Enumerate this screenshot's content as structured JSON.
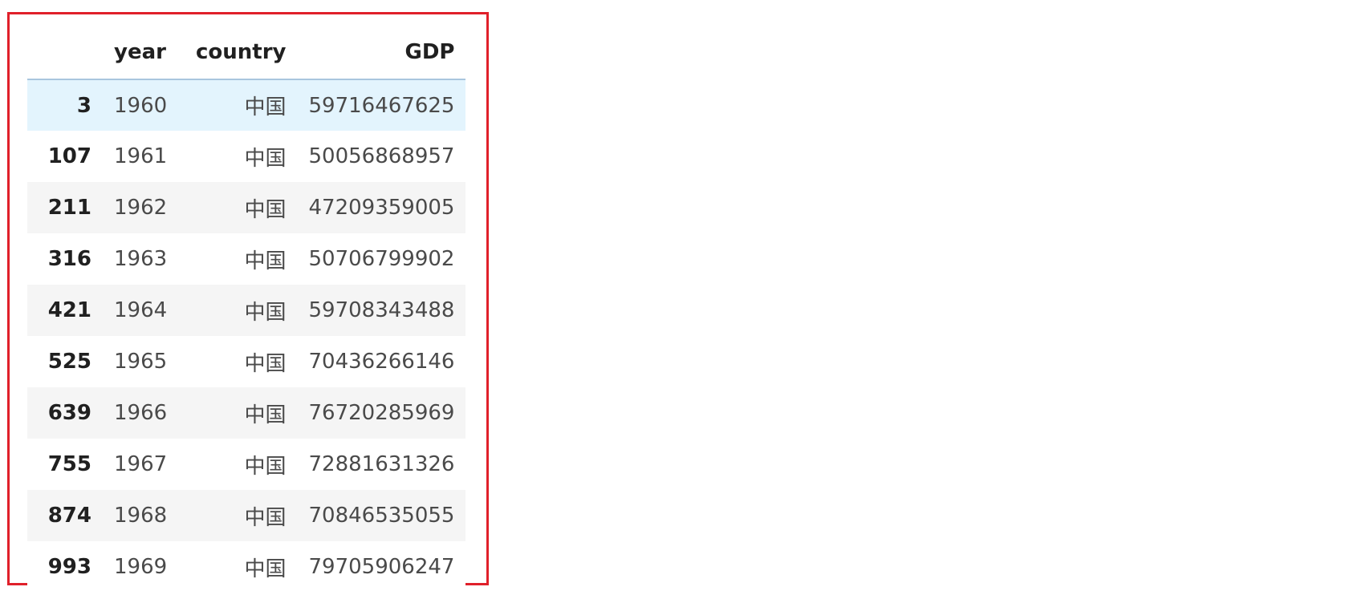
{
  "table": {
    "columns": [
      "",
      "year",
      "country",
      "GDP"
    ],
    "rows": [
      {
        "index": "3",
        "year": "1960",
        "country": "中国",
        "GDP": "59716467625"
      },
      {
        "index": "107",
        "year": "1961",
        "country": "中国",
        "GDP": "50056868957"
      },
      {
        "index": "211",
        "year": "1962",
        "country": "中国",
        "GDP": "47209359005"
      },
      {
        "index": "316",
        "year": "1963",
        "country": "中国",
        "GDP": "50706799902"
      },
      {
        "index": "421",
        "year": "1964",
        "country": "中国",
        "GDP": "59708343488"
      },
      {
        "index": "525",
        "year": "1965",
        "country": "中国",
        "GDP": "70436266146"
      },
      {
        "index": "639",
        "year": "1966",
        "country": "中国",
        "GDP": "76720285969"
      },
      {
        "index": "755",
        "year": "1967",
        "country": "中国",
        "GDP": "72881631326"
      },
      {
        "index": "874",
        "year": "1968",
        "country": "中国",
        "GDP": "70846535055"
      },
      {
        "index": "993",
        "year": "1969",
        "country": "中国",
        "GDP": "79705906247"
      }
    ],
    "highlight_color": "#e3f4fd",
    "frame_color": "#e0202a"
  }
}
